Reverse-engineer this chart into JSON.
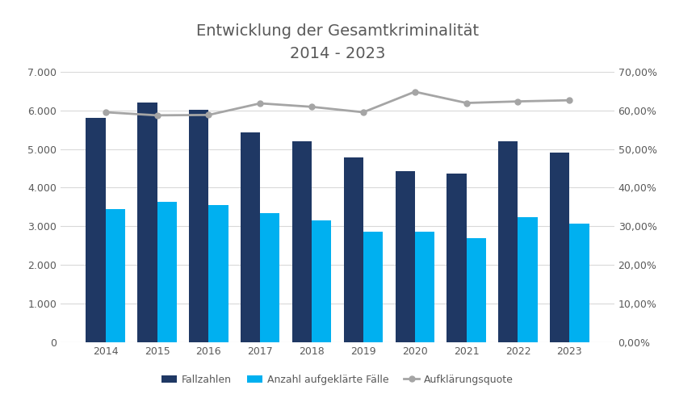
{
  "title_line1": "Entwicklung der Gesamtkriminalität",
  "title_line2": "2014 - 2023",
  "years": [
    2014,
    2015,
    2016,
    2017,
    2018,
    2019,
    2020,
    2021,
    2022,
    2023
  ],
  "fallzahlen": [
    5800,
    6200,
    6020,
    5420,
    5190,
    4790,
    4430,
    4360,
    5200,
    4910
  ],
  "aufgeklaerte": [
    3450,
    3640,
    3540,
    3350,
    3160,
    2850,
    2870,
    2700,
    3240,
    3070
  ],
  "aufklaerungsquote": [
    0.595,
    0.587,
    0.588,
    0.618,
    0.609,
    0.595,
    0.648,
    0.619,
    0.623,
    0.626
  ],
  "bar_color_fall": "#1f3864",
  "bar_color_aufgeklaert": "#00b0f0",
  "line_color": "#a5a5a5",
  "ylim_left": [
    0,
    7000
  ],
  "ylim_right": [
    0,
    0.7
  ],
  "yticks_left": [
    0,
    1000,
    2000,
    3000,
    4000,
    5000,
    6000,
    7000
  ],
  "ytick_labels_left": [
    "0",
    "1.000",
    "2.000",
    "3.000",
    "4.000",
    "5.000",
    "6.000",
    "7.000"
  ],
  "yticks_right": [
    0,
    0.1,
    0.2,
    0.3,
    0.4,
    0.5,
    0.6,
    0.7
  ],
  "ytick_labels_right": [
    "0,00%",
    "10,00%",
    "20,00%",
    "30,00%",
    "40,00%",
    "50,00%",
    "60,00%",
    "70,00%"
  ],
  "legend_labels": [
    "Fallzahlen",
    "Anzahl aufgeklärte Fälle",
    "Aufklärungsquote"
  ],
  "title_color": "#595959",
  "tick_color": "#595959",
  "title_fontsize": 14,
  "bar_width": 0.38
}
